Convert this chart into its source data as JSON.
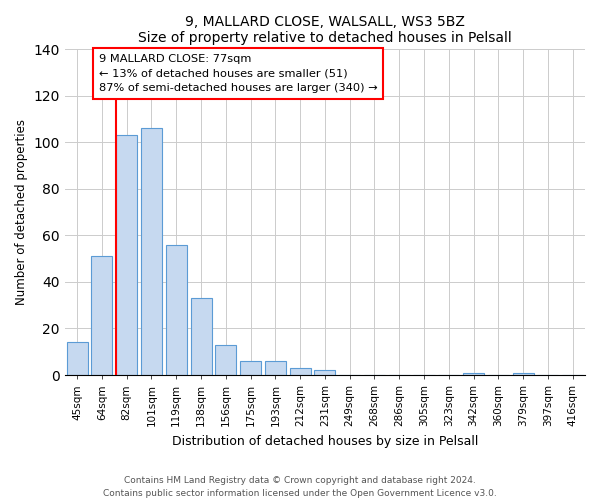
{
  "title": "9, MALLARD CLOSE, WALSALL, WS3 5BZ",
  "subtitle": "Size of property relative to detached houses in Pelsall",
  "xlabel": "Distribution of detached houses by size in Pelsall",
  "ylabel": "Number of detached properties",
  "bar_labels": [
    "45sqm",
    "64sqm",
    "82sqm",
    "101sqm",
    "119sqm",
    "138sqm",
    "156sqm",
    "175sqm",
    "193sqm",
    "212sqm",
    "231sqm",
    "249sqm",
    "268sqm",
    "286sqm",
    "305sqm",
    "323sqm",
    "342sqm",
    "360sqm",
    "379sqm",
    "397sqm",
    "416sqm"
  ],
  "bar_values": [
    14,
    51,
    103,
    106,
    56,
    33,
    13,
    6,
    6,
    3,
    2,
    0,
    0,
    0,
    0,
    0,
    1,
    0,
    1,
    0,
    0
  ],
  "bar_color": "#c6d9f0",
  "bar_edge_color": "#5b9bd5",
  "property_line_index": 2,
  "property_line_color": "red",
  "ylim": [
    0,
    140
  ],
  "yticks": [
    0,
    20,
    40,
    60,
    80,
    100,
    120,
    140
  ],
  "annotation_line1": "9 MALLARD CLOSE: 77sqm",
  "annotation_line2": "← 13% of detached houses are smaller (51)",
  "annotation_line3": "87% of semi-detached houses are larger (340) →",
  "footer_line1": "Contains HM Land Registry data © Crown copyright and database right 2024.",
  "footer_line2": "Contains public sector information licensed under the Open Government Licence v3.0.",
  "background_color": "#ffffff",
  "grid_color": "#cccccc"
}
